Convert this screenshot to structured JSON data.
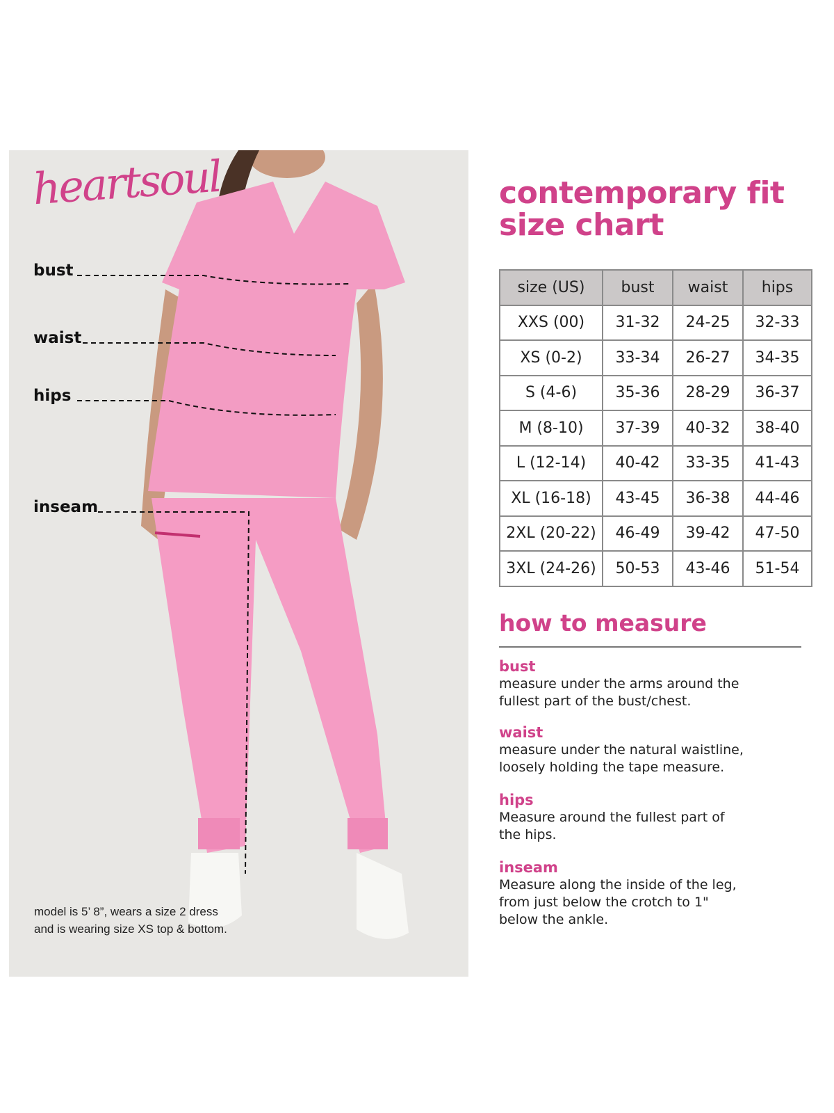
{
  "brand": {
    "logo": "heartsoul",
    "accent": "#d0428a"
  },
  "photo": {
    "labels": {
      "bust": "bust",
      "waist": "waist",
      "hips": "hips",
      "inseam": "inseam"
    },
    "note_line1": "model is 5’ 8”, wears a size 2 dress",
    "note_line2": "and is wearing size XS top & bottom."
  },
  "title": {
    "line1": "contemporary fit",
    "line2": "size chart"
  },
  "table": {
    "headers": [
      "size (US)",
      "bust",
      "waist",
      "hips"
    ],
    "rows": [
      [
        "XXS (00)",
        "31-32",
        "24-25",
        "32-33"
      ],
      [
        "XS (0-2)",
        "33-34",
        "26-27",
        "34-35"
      ],
      [
        "S (4-6)",
        "35-36",
        "28-29",
        "36-37"
      ],
      [
        "M (8-10)",
        "37-39",
        "40-32",
        "38-40"
      ],
      [
        "L (12-14)",
        "40-42",
        "33-35",
        "41-43"
      ],
      [
        "XL (16-18)",
        "43-45",
        "36-38",
        "44-46"
      ],
      [
        "2XL (20-22)",
        "46-49",
        "39-42",
        "47-50"
      ],
      [
        "3XL (24-26)",
        "50-53",
        "43-46",
        "51-54"
      ]
    ]
  },
  "measure": {
    "heading": "how to measure",
    "sections": [
      {
        "title": "bust",
        "line1": "measure under the arms around the",
        "line2": "fullest part of the bust/chest.",
        "line3": ""
      },
      {
        "title": "waist",
        "line1": "measure under the natural waistline,",
        "line2": "loosely holding the tape measure.",
        "line3": ""
      },
      {
        "title": "hips",
        "line1": "Measure around the fullest part of",
        "line2": "the hips.",
        "line3": ""
      },
      {
        "title": "inseam",
        "line1": "Measure along the inside of the leg,",
        "line2": "from just below the crotch to 1\"",
        "line3": "below the ankle."
      }
    ]
  }
}
